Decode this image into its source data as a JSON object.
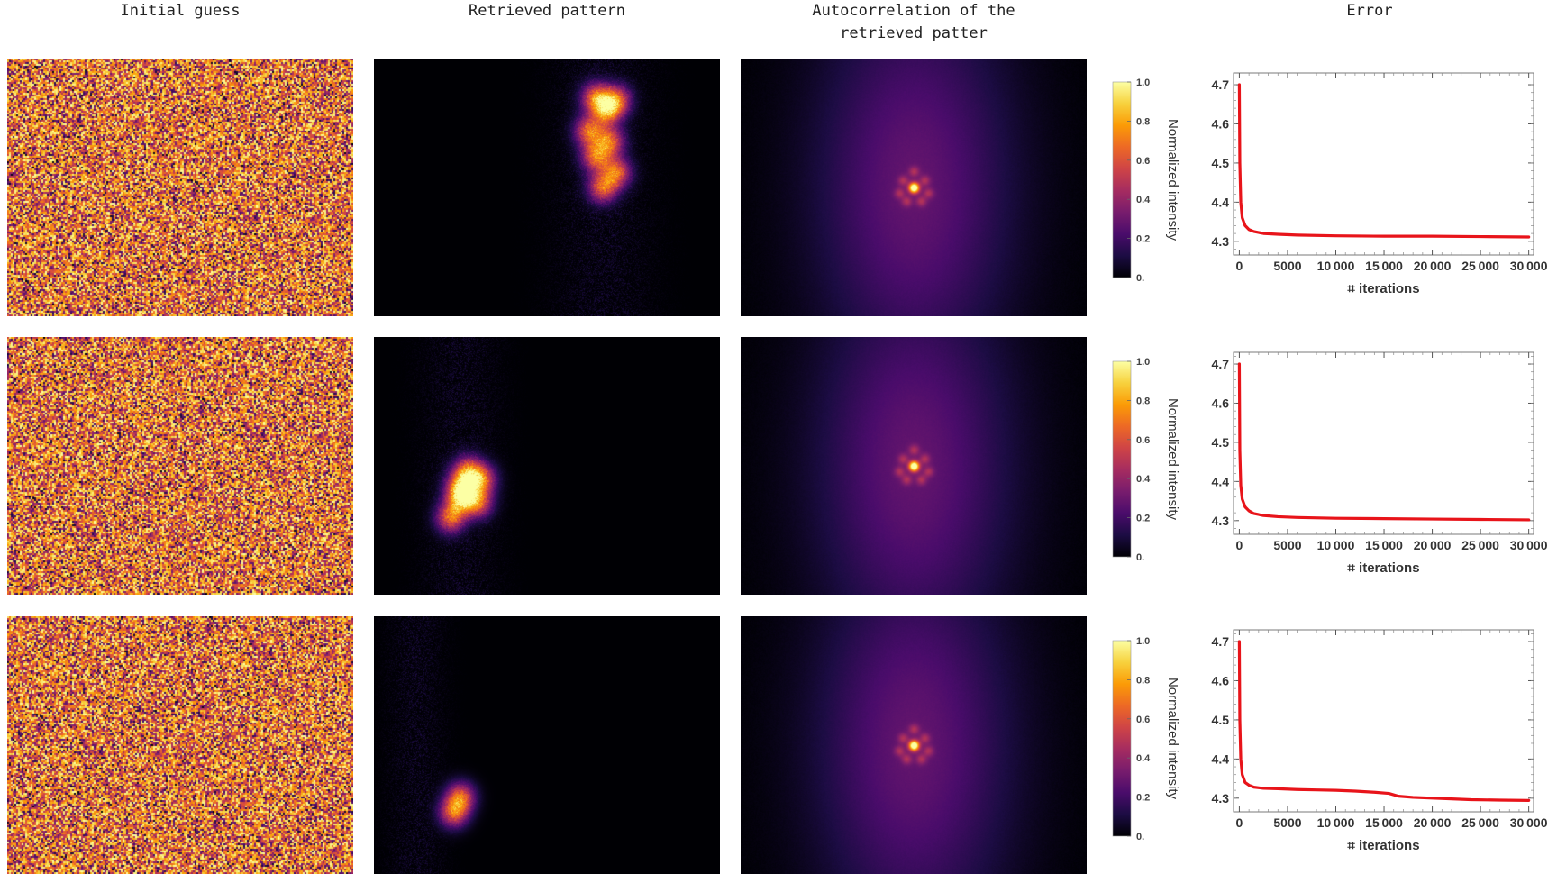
{
  "column_titles": {
    "initial": "Initial guess",
    "retrieved": "Retrieved pattern",
    "autocorr": "Autocorrelation of the\nretrieved patter",
    "error": "Error"
  },
  "colorbar": {
    "label": "Normalized intensity",
    "ticks": [
      "1.0",
      "0.8",
      "0.6",
      "0.4",
      "0.2",
      "0."
    ],
    "colormap": [
      "#000004",
      "#1c0c43",
      "#4a0c6b",
      "#781c6d",
      "#a52c60",
      "#cf4446",
      "#ed6925",
      "#fb9b06",
      "#f7d13d",
      "#fcffa4"
    ]
  },
  "chart_data": [
    {
      "type": "line",
      "row": 1,
      "title": "Error",
      "xlabel": "⌗ iterations",
      "xticks": [
        "0",
        "5000",
        "10 000",
        "15 000",
        "20 000",
        "25 000",
        "30 000"
      ],
      "yticks": [
        "4.7",
        "4.6",
        "4.5",
        "4.4",
        "4.3"
      ],
      "xlim": [
        -600,
        30500
      ],
      "ylim": [
        4.265,
        4.73
      ],
      "color": "#e8141a",
      "series": [
        {
          "x": [
            0,
            50,
            150,
            300,
            600,
            1000,
            1500,
            2500,
            4000,
            6000,
            10000,
            15000,
            20000,
            25000,
            30000
          ],
          "y": [
            4.7,
            4.5,
            4.4,
            4.36,
            4.34,
            4.33,
            4.325,
            4.32,
            4.318,
            4.316,
            4.314,
            4.313,
            4.313,
            4.312,
            4.311
          ]
        }
      ]
    },
    {
      "type": "line",
      "row": 2,
      "title": "Error",
      "xlabel": "⌗ iterations",
      "xticks": [
        "0",
        "5000",
        "10 000",
        "15 000",
        "20 000",
        "25 000",
        "30 000"
      ],
      "yticks": [
        "4.7",
        "4.6",
        "4.5",
        "4.4",
        "4.3"
      ],
      "xlim": [
        -600,
        30500
      ],
      "ylim": [
        4.265,
        4.73
      ],
      "color": "#e8141a",
      "series": [
        {
          "x": [
            0,
            50,
            150,
            300,
            600,
            1000,
            1500,
            2500,
            4000,
            6000,
            10000,
            15000,
            20000,
            25000,
            30000
          ],
          "y": [
            4.7,
            4.48,
            4.39,
            4.355,
            4.335,
            4.325,
            4.318,
            4.313,
            4.31,
            4.308,
            4.306,
            4.305,
            4.304,
            4.303,
            4.302
          ]
        }
      ]
    },
    {
      "type": "line",
      "row": 3,
      "title": "Error",
      "xlabel": "⌗ iterations",
      "xticks": [
        "0",
        "5000",
        "10 000",
        "15 000",
        "20 000",
        "25 000",
        "30 000"
      ],
      "yticks": [
        "4.7",
        "4.6",
        "4.5",
        "4.4",
        "4.3"
      ],
      "xlim": [
        -600,
        30500
      ],
      "ylim": [
        4.265,
        4.73
      ],
      "color": "#e8141a",
      "series": [
        {
          "x": [
            0,
            50,
            150,
            300,
            600,
            1000,
            1500,
            2500,
            4000,
            6000,
            8000,
            10000,
            12000,
            14000,
            15500,
            16500,
            18000,
            20000,
            22000,
            24000,
            27000,
            30000
          ],
          "y": [
            4.7,
            4.5,
            4.4,
            4.36,
            4.34,
            4.333,
            4.328,
            4.325,
            4.324,
            4.322,
            4.321,
            4.32,
            4.318,
            4.315,
            4.312,
            4.305,
            4.302,
            4.3,
            4.298,
            4.296,
            4.295,
            4.294
          ]
        }
      ]
    }
  ]
}
